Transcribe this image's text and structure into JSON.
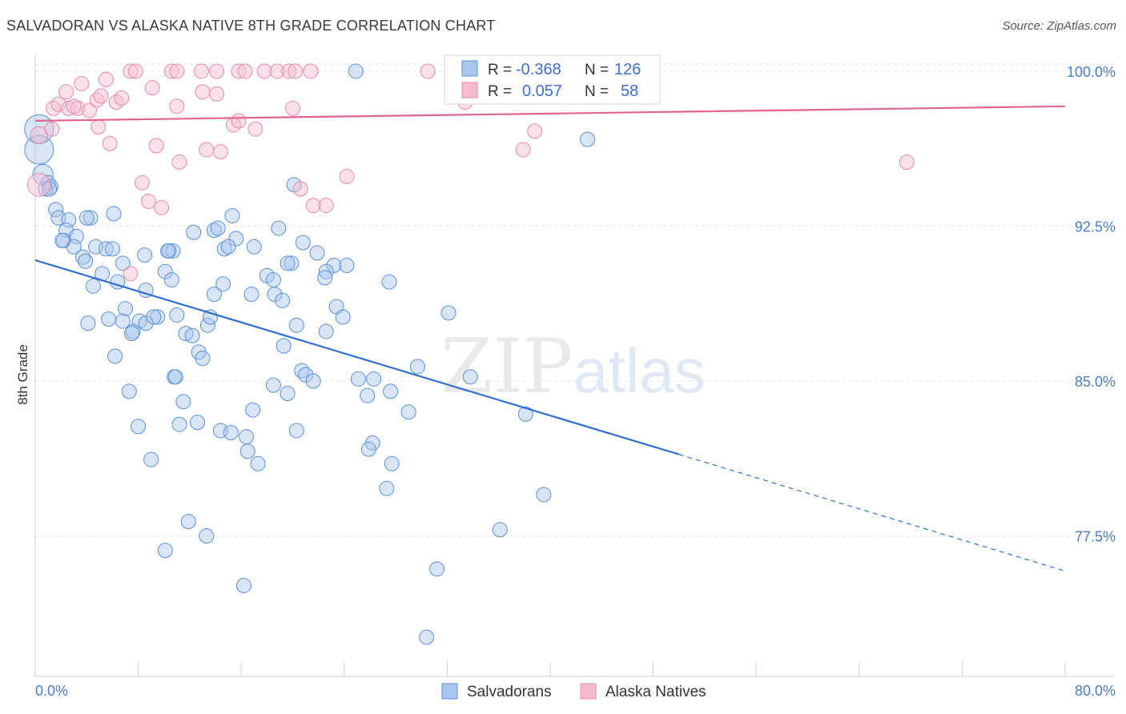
{
  "title": "SALVADORAN VS ALASKA NATIVE 8TH GRADE CORRELATION CHART",
  "source": "Source: ZipAtlas.com",
  "watermark": {
    "zip": "ZIP",
    "atlas": "atlas"
  },
  "colors": {
    "blue": "#5b8fd9",
    "blue_fill": "#a9c6ee",
    "blue_line": "#2f6fd0",
    "pink": "#e48aa8",
    "pink_fill": "#f5bccf",
    "pink_line": "#e0648c",
    "grid": "#e3e3e3",
    "tick_text": "#4a7cc9"
  },
  "legend": {
    "rows": [
      {
        "r_label": "R =",
        "r_value": "-0.368",
        "n_label": "N =",
        "n_value": "126"
      },
      {
        "r_label": "R =",
        "r_value": "0.057",
        "n_label": "N =",
        "n_value": "58"
      }
    ]
  },
  "bottom_legend": [
    "Salvadorans",
    "Alaska Natives"
  ],
  "chart_data": {
    "type": "scatter",
    "title": "SALVADORAN VS ALASKA NATIVE 8TH GRADE CORRELATION CHART",
    "xlabel": "",
    "ylabel": "8th Grade",
    "xlim": [
      0,
      80
    ],
    "ylim": [
      70.7,
      101.2
    ],
    "x_tick_labels": [
      "0.0%",
      "80.0%"
    ],
    "y_ticks": [
      77.5,
      85.0,
      92.5,
      100.0
    ],
    "y_tick_labels": [
      "77.5%",
      "85.0%",
      "92.5%",
      "100.0%"
    ],
    "grid": true,
    "legend_position": "top-center",
    "series": [
      {
        "name": "Salvadorans",
        "r": -0.368,
        "n": 126,
        "trend": {
          "x0": 0,
          "y0": 90.85,
          "x1": 50,
          "y1": 81.45,
          "dash_to_x": 80,
          "dash_to_y": 75.8
        },
        "points": [
          [
            0.3,
            96.2,
            2
          ],
          [
            0.3,
            97.2,
            2
          ],
          [
            0.6,
            95.0,
            1.4
          ],
          [
            1.0,
            94.6,
            1
          ],
          [
            1.2,
            94.4,
            1
          ],
          [
            0.8,
            94.3,
            1
          ],
          [
            1.6,
            93.3,
            1
          ],
          [
            1.8,
            92.9,
            1
          ],
          [
            2.6,
            92.8,
            1
          ],
          [
            4.3,
            92.9,
            1
          ],
          [
            6.1,
            93.1,
            1
          ],
          [
            2.4,
            92.3,
            1
          ],
          [
            3.2,
            92.0,
            1
          ],
          [
            2.2,
            91.8,
            1
          ],
          [
            3.0,
            91.5,
            1
          ],
          [
            4.7,
            91.5,
            1
          ],
          [
            5.5,
            91.4,
            1
          ],
          [
            3.7,
            91.0,
            1
          ],
          [
            3.9,
            90.8,
            1
          ],
          [
            6.8,
            90.7,
            1
          ],
          [
            5.2,
            90.2,
            1
          ],
          [
            4.5,
            89.6,
            1
          ],
          [
            6.4,
            89.8,
            1
          ],
          [
            8.5,
            91.1,
            1
          ],
          [
            10.4,
            91.3,
            1
          ],
          [
            10.7,
            91.3,
            1
          ],
          [
            12.3,
            92.2,
            1
          ],
          [
            13.9,
            92.3,
            1
          ],
          [
            14.2,
            92.4,
            1
          ],
          [
            15.3,
            93.0,
            1
          ],
          [
            15.6,
            91.9,
            1
          ],
          [
            14.7,
            91.4,
            1
          ],
          [
            17.0,
            91.5,
            1
          ],
          [
            18.9,
            92.4,
            1
          ],
          [
            19.9,
            90.7,
            1
          ],
          [
            20.8,
            91.7,
            1
          ],
          [
            21.9,
            91.2,
            1
          ],
          [
            23.2,
            90.6,
            1
          ],
          [
            22.6,
            90.3,
            1
          ],
          [
            22.5,
            90.0,
            1
          ],
          [
            18.0,
            90.1,
            1
          ],
          [
            18.5,
            89.9,
            1
          ],
          [
            10.1,
            90.3,
            1
          ],
          [
            10.6,
            89.9,
            1
          ],
          [
            14.6,
            89.7,
            1
          ],
          [
            8.6,
            89.4,
            1
          ],
          [
            13.9,
            89.2,
            1
          ],
          [
            16.8,
            89.2,
            1
          ],
          [
            18.6,
            89.2,
            1
          ],
          [
            19.2,
            88.9,
            1
          ],
          [
            23.4,
            88.6,
            1
          ],
          [
            23.9,
            88.1,
            1
          ],
          [
            27.5,
            89.8,
            1
          ],
          [
            32.1,
            88.3,
            1
          ],
          [
            7.0,
            88.5,
            1
          ],
          [
            4.1,
            87.8,
            1
          ],
          [
            5.7,
            88.0,
            1
          ],
          [
            6.8,
            87.9,
            1
          ],
          [
            8.1,
            87.9,
            1
          ],
          [
            9.5,
            88.1,
            1
          ],
          [
            8.6,
            87.8,
            1
          ],
          [
            11.0,
            88.2,
            1
          ],
          [
            13.4,
            87.7,
            1
          ],
          [
            13.6,
            88.1,
            1
          ],
          [
            7.6,
            87.4,
            1
          ],
          [
            7.5,
            87.3,
            1
          ],
          [
            11.7,
            87.3,
            1
          ],
          [
            12.2,
            87.2,
            1
          ],
          [
            20.3,
            87.7,
            1
          ],
          [
            22.6,
            87.4,
            1
          ],
          [
            19.3,
            86.7,
            1
          ],
          [
            12.7,
            86.4,
            1
          ],
          [
            13.0,
            86.1,
            1
          ],
          [
            6.2,
            86.2,
            1
          ],
          [
            20.7,
            85.5,
            1
          ],
          [
            21.0,
            85.3,
            1
          ],
          [
            21.6,
            85.0,
            1
          ],
          [
            29.7,
            85.7,
            1
          ],
          [
            33.8,
            85.2,
            1
          ],
          [
            10.8,
            85.2,
            1
          ],
          [
            10.9,
            85.2,
            1
          ],
          [
            25.1,
            85.1,
            1
          ],
          [
            26.3,
            85.1,
            1
          ],
          [
            18.5,
            84.8,
            1
          ],
          [
            19.6,
            84.4,
            1
          ],
          [
            25.8,
            84.3,
            1
          ],
          [
            27.6,
            84.5,
            1
          ],
          [
            7.3,
            84.5,
            1
          ],
          [
            11.5,
            84.0,
            1
          ],
          [
            16.9,
            83.6,
            1
          ],
          [
            29.0,
            83.5,
            1
          ],
          [
            38.1,
            83.4,
            1
          ],
          [
            12.6,
            83.0,
            1
          ],
          [
            11.2,
            82.9,
            1
          ],
          [
            8.0,
            82.8,
            1
          ],
          [
            14.4,
            82.6,
            1
          ],
          [
            15.2,
            82.5,
            1
          ],
          [
            16.4,
            82.3,
            1
          ],
          [
            20.3,
            82.6,
            1
          ],
          [
            26.2,
            82.0,
            1
          ],
          [
            25.9,
            81.7,
            1
          ],
          [
            16.5,
            81.6,
            1
          ],
          [
            9.0,
            81.2,
            1
          ],
          [
            17.3,
            81.0,
            1
          ],
          [
            27.7,
            81.0,
            1
          ],
          [
            27.3,
            79.8,
            1
          ],
          [
            39.5,
            79.5,
            1
          ],
          [
            11.9,
            78.2,
            1
          ],
          [
            13.3,
            77.5,
            1
          ],
          [
            36.1,
            77.8,
            1
          ],
          [
            10.1,
            76.8,
            1
          ],
          [
            31.2,
            75.9,
            1
          ],
          [
            16.2,
            75.1,
            1
          ],
          [
            30.4,
            72.6,
            1
          ],
          [
            24.9,
            100.0,
            1
          ],
          [
            42.9,
            96.7,
            1
          ],
          [
            20.1,
            94.5,
            1
          ],
          [
            1.1,
            94.3,
            1
          ],
          [
            4.0,
            92.9,
            1
          ],
          [
            2.1,
            91.8,
            1
          ],
          [
            6.0,
            91.4,
            1
          ],
          [
            10.3,
            91.3,
            1
          ],
          [
            15.0,
            91.5,
            1
          ],
          [
            19.6,
            90.7,
            1
          ],
          [
            24.2,
            90.6,
            1
          ],
          [
            9.2,
            88.1,
            1
          ]
        ]
      },
      {
        "name": "Alaska Natives",
        "r": 0.057,
        "n": 58,
        "trend": {
          "x0": 0,
          "y0": 97.6,
          "x1": 80,
          "y1": 98.3
        },
        "points": [
          [
            0.3,
            94.5,
            1.6
          ],
          [
            0.3,
            96.9,
            1.2
          ],
          [
            1.3,
            97.2,
            1
          ],
          [
            1.4,
            98.2,
            1
          ],
          [
            1.8,
            98.4,
            1
          ],
          [
            2.6,
            98.2,
            1
          ],
          [
            2.4,
            99.0,
            1
          ],
          [
            3.3,
            98.2,
            1
          ],
          [
            3.6,
            99.4,
            1
          ],
          [
            3.0,
            98.3,
            1
          ],
          [
            4.2,
            98.1,
            1
          ],
          [
            4.8,
            98.6,
            1
          ],
          [
            5.1,
            98.8,
            1
          ],
          [
            5.5,
            99.6,
            1
          ],
          [
            6.3,
            98.5,
            1
          ],
          [
            6.7,
            98.7,
            1
          ],
          [
            7.4,
            100.0,
            1
          ],
          [
            7.8,
            100.0,
            1
          ],
          [
            9.1,
            99.2,
            1
          ],
          [
            10.6,
            100.0,
            1
          ],
          [
            11.0,
            100.0,
            1
          ],
          [
            12.9,
            100.0,
            1
          ],
          [
            14.1,
            100.0,
            1
          ],
          [
            15.8,
            100.0,
            1
          ],
          [
            16.3,
            100.0,
            1
          ],
          [
            17.8,
            100.0,
            1
          ],
          [
            18.8,
            100.0,
            1
          ],
          [
            19.7,
            100.0,
            1
          ],
          [
            20.2,
            100.0,
            1
          ],
          [
            21.4,
            100.0,
            1
          ],
          [
            30.5,
            100.0,
            1
          ],
          [
            13.0,
            99.0,
            1
          ],
          [
            14.1,
            98.9,
            1
          ],
          [
            11.0,
            98.3,
            1
          ],
          [
            4.9,
            97.3,
            1
          ],
          [
            5.8,
            96.5,
            1
          ],
          [
            9.4,
            96.4,
            1
          ],
          [
            15.4,
            97.4,
            1
          ],
          [
            15.8,
            97.6,
            1
          ],
          [
            17.1,
            97.2,
            1
          ],
          [
            20.0,
            98.2,
            1
          ],
          [
            13.3,
            96.2,
            1
          ],
          [
            14.4,
            96.1,
            1
          ],
          [
            11.2,
            95.6,
            1
          ],
          [
            8.3,
            94.6,
            1
          ],
          [
            8.8,
            93.7,
            1
          ],
          [
            9.8,
            93.4,
            1
          ],
          [
            20.6,
            94.3,
            1
          ],
          [
            21.6,
            93.5,
            1
          ],
          [
            22.6,
            93.5,
            1
          ],
          [
            24.2,
            94.9,
            1
          ],
          [
            7.4,
            90.2,
            1
          ],
          [
            33.4,
            98.5,
            1
          ],
          [
            38.8,
            97.1,
            1
          ],
          [
            37.9,
            96.2,
            1
          ],
          [
            40.0,
            100.0,
            1
          ],
          [
            44.8,
            100.0,
            1
          ],
          [
            67.7,
            95.6,
            1
          ]
        ]
      }
    ]
  }
}
